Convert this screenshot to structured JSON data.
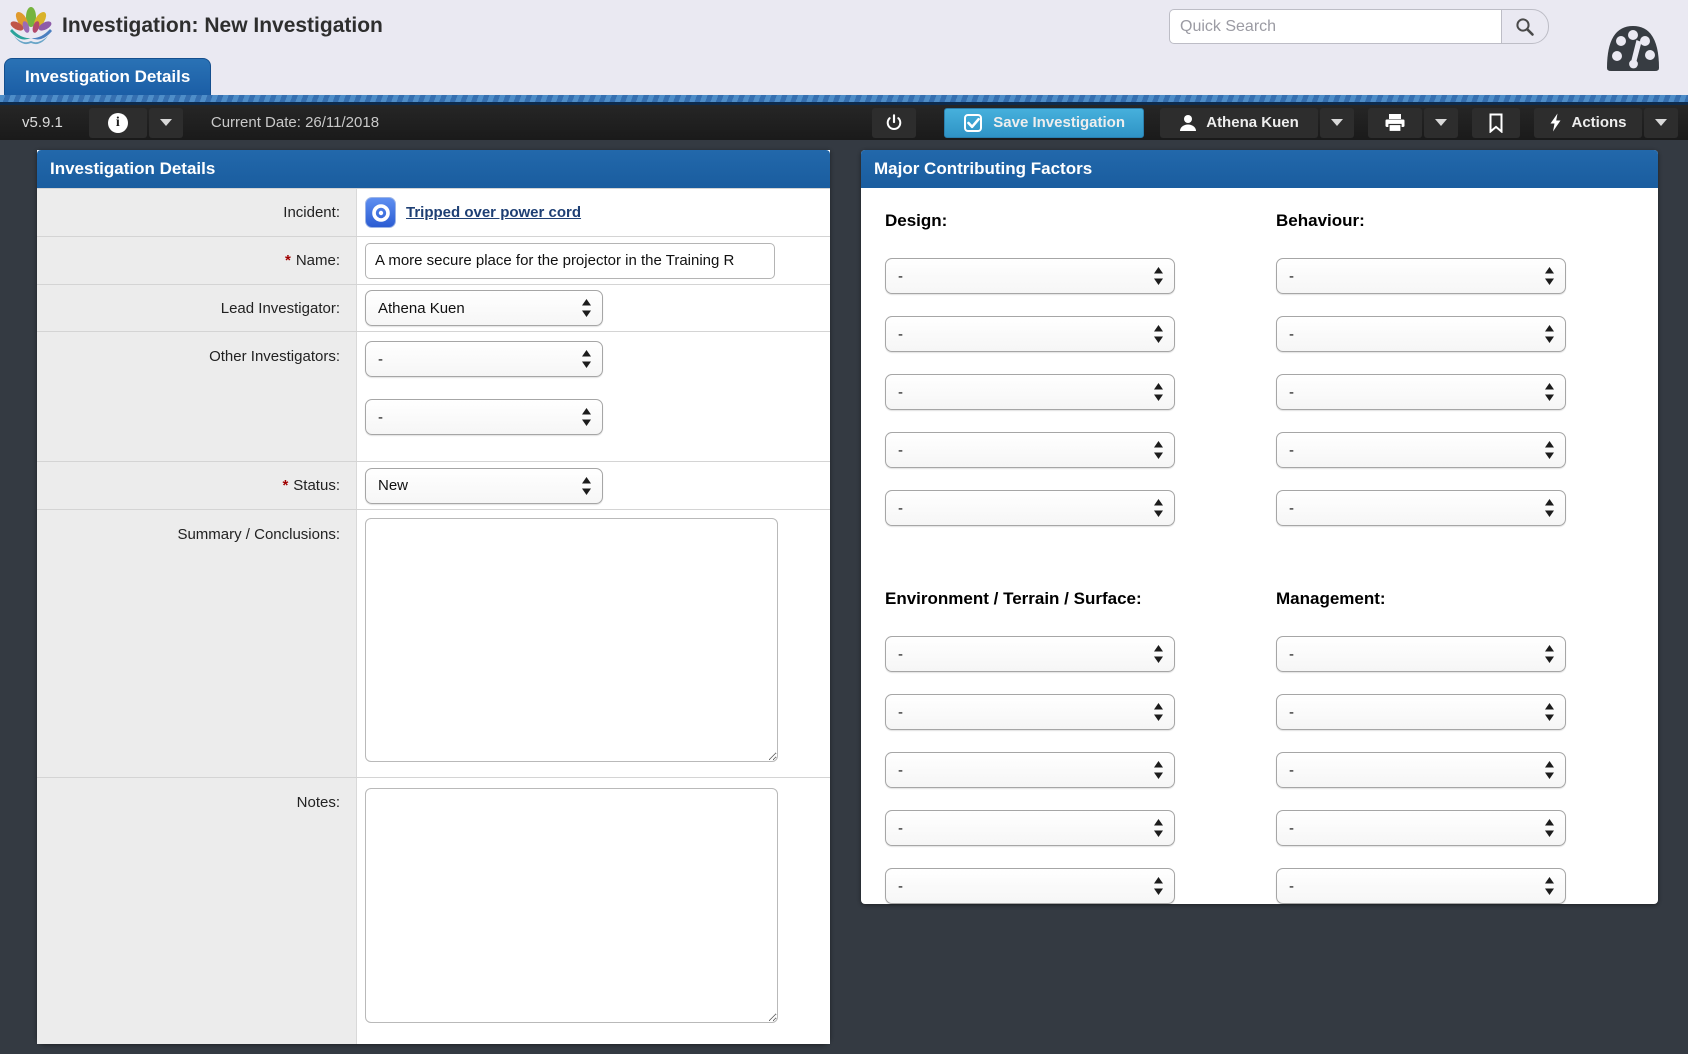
{
  "header": {
    "title": "Investigation: New Investigation",
    "search_placeholder": "Quick Search",
    "tab": "Investigation Details"
  },
  "toolbar": {
    "version": "v5.9.1",
    "current_date": "Current Date: 26/11/2018",
    "save_label": "Save Investigation",
    "user_name": "Athena Kuen",
    "actions_label": "Actions"
  },
  "details_panel": {
    "title": "Investigation Details",
    "incident_label": "Incident:",
    "incident_link": "Tripped over power cord",
    "name_label": "Name:",
    "name_value": "A more secure place for the projector in the Training R",
    "lead_label": "Lead Investigator:",
    "lead_value": "Athena Kuen",
    "other_label": "Other Investigators:",
    "other_value_1": "-",
    "other_value_2": "-",
    "status_label": "Status:",
    "status_value": "New",
    "summary_label": "Summary / Conclusions:",
    "notes_label": "Notes:",
    "required_marker": "*"
  },
  "factors_panel": {
    "title": "Major Contributing Factors",
    "placeholder": "-",
    "selects_per_group": 5,
    "groups": [
      {
        "label": "Design:"
      },
      {
        "label": "Behaviour:"
      },
      {
        "label": "Environment / Terrain / Surface:"
      },
      {
        "label": "Management:"
      }
    ]
  },
  "icons": {
    "logo": "lotus-flower",
    "search": "magnifier",
    "dashboard": "gauge",
    "info": "info-circle",
    "power": "power-symbol",
    "save": "checkbox-check",
    "user": "person",
    "print": "printer",
    "bookmark": "bookmark",
    "actions": "lightning-bolt",
    "incident": "target-bullseye",
    "select": "up-down-arrows"
  },
  "colors": {
    "accent_blue": "#1d63a7",
    "save_button_blue": "#3aa4d4",
    "page_background": "#343a42",
    "header_lavender": "#eae9f2",
    "label_gray": "#ececec",
    "required_red": "#a00000",
    "link_navy": "#1e3f74"
  }
}
